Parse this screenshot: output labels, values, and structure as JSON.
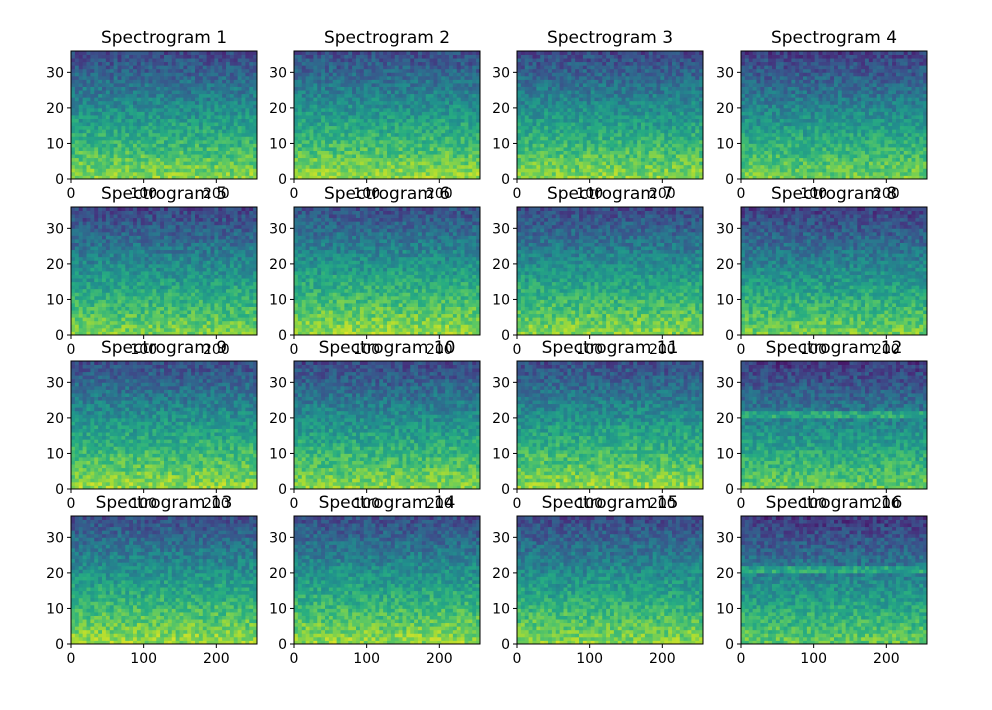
{
  "figure": {
    "background": "#ffffff"
  },
  "chart_data": [
    {
      "type": "heatmap",
      "title": "Spectrogram 1",
      "xlim": [
        0,
        256
      ],
      "ylim": [
        0,
        36
      ],
      "xticks": [
        0,
        100,
        200
      ],
      "yticks": [
        0,
        10,
        20,
        30
      ],
      "xtick_labels": [
        "0",
        "100",
        "200"
      ],
      "ytick_labels": [
        "0",
        "10",
        "20",
        "30"
      ],
      "colormap": "viridis",
      "intensity": 0.55,
      "horizontal_band": false
    },
    {
      "type": "heatmap",
      "title": "Spectrogram 2",
      "xlim": [
        0,
        256
      ],
      "ylim": [
        0,
        36
      ],
      "xticks": [
        0,
        100,
        200
      ],
      "yticks": [
        0,
        10,
        20,
        30
      ],
      "xtick_labels": [
        "0",
        "100",
        "200"
      ],
      "ytick_labels": [
        "0",
        "10",
        "20",
        "30"
      ],
      "colormap": "viridis",
      "intensity": 0.6,
      "horizontal_band": false
    },
    {
      "type": "heatmap",
      "title": "Spectrogram 3",
      "xlim": [
        0,
        256
      ],
      "ylim": [
        0,
        36
      ],
      "xticks": [
        0,
        100,
        200
      ],
      "yticks": [
        0,
        10,
        20,
        30
      ],
      "xtick_labels": [
        "0",
        "100",
        "200"
      ],
      "ytick_labels": [
        "0",
        "10",
        "20",
        "30"
      ],
      "colormap": "viridis",
      "intensity": 0.55,
      "horizontal_band": false
    },
    {
      "type": "heatmap",
      "title": "Spectrogram 4",
      "xlim": [
        0,
        256
      ],
      "ylim": [
        0,
        36
      ],
      "xticks": [
        0,
        100,
        200
      ],
      "yticks": [
        0,
        10,
        20,
        30
      ],
      "xtick_labels": [
        "0",
        "100",
        "200"
      ],
      "ytick_labels": [
        "0",
        "10",
        "20",
        "30"
      ],
      "colormap": "viridis",
      "intensity": 0.45,
      "horizontal_band": false
    },
    {
      "type": "heatmap",
      "title": "Spectrogram 5",
      "xlim": [
        0,
        256
      ],
      "ylim": [
        0,
        36
      ],
      "xticks": [
        0,
        100,
        200
      ],
      "yticks": [
        0,
        10,
        20,
        30
      ],
      "xtick_labels": [
        "0",
        "100",
        "200"
      ],
      "ytick_labels": [
        "0",
        "10",
        "20",
        "30"
      ],
      "colormap": "viridis",
      "intensity": 0.5,
      "horizontal_band": false
    },
    {
      "type": "heatmap",
      "title": "Spectrogram 6",
      "xlim": [
        0,
        256
      ],
      "ylim": [
        0,
        36
      ],
      "xticks": [
        0,
        100,
        200
      ],
      "yticks": [
        0,
        10,
        20,
        30
      ],
      "xtick_labels": [
        "0",
        "100",
        "200"
      ],
      "ytick_labels": [
        "0",
        "10",
        "20",
        "30"
      ],
      "colormap": "viridis",
      "intensity": 0.62,
      "horizontal_band": false
    },
    {
      "type": "heatmap",
      "title": "Spectrogram 7",
      "xlim": [
        0,
        256
      ],
      "ylim": [
        0,
        36
      ],
      "xticks": [
        0,
        100,
        200
      ],
      "yticks": [
        0,
        10,
        20,
        30
      ],
      "xtick_labels": [
        "0",
        "100",
        "200"
      ],
      "ytick_labels": [
        "0",
        "10",
        "20",
        "30"
      ],
      "colormap": "viridis",
      "intensity": 0.55,
      "horizontal_band": false
    },
    {
      "type": "heatmap",
      "title": "Spectrogram 8",
      "xlim": [
        0,
        256
      ],
      "ylim": [
        0,
        36
      ],
      "xticks": [
        0,
        100,
        200
      ],
      "yticks": [
        0,
        10,
        20,
        30
      ],
      "xtick_labels": [
        "0",
        "100",
        "200"
      ],
      "ytick_labels": [
        "0",
        "10",
        "20",
        "30"
      ],
      "colormap": "viridis",
      "intensity": 0.45,
      "horizontal_band": false
    },
    {
      "type": "heatmap",
      "title": "Spectrogram 9",
      "xlim": [
        0,
        256
      ],
      "ylim": [
        0,
        36
      ],
      "xticks": [
        0,
        100,
        200
      ],
      "yticks": [
        0,
        10,
        20,
        30
      ],
      "xtick_labels": [
        "0",
        "100",
        "200"
      ],
      "ytick_labels": [
        "0",
        "10",
        "20",
        "30"
      ],
      "colormap": "viridis",
      "intensity": 0.6,
      "horizontal_band": false
    },
    {
      "type": "heatmap",
      "title": "Spectrogram 10",
      "xlim": [
        0,
        256
      ],
      "ylim": [
        0,
        36
      ],
      "xticks": [
        0,
        100,
        200
      ],
      "yticks": [
        0,
        10,
        20,
        30
      ],
      "xtick_labels": [
        "0",
        "100",
        "200"
      ],
      "ytick_labels": [
        "0",
        "10",
        "20",
        "30"
      ],
      "colormap": "viridis",
      "intensity": 0.55,
      "horizontal_band": false
    },
    {
      "type": "heatmap",
      "title": "Spectrogram 11",
      "xlim": [
        0,
        256
      ],
      "ylim": [
        0,
        36
      ],
      "xticks": [
        0,
        100,
        200
      ],
      "yticks": [
        0,
        10,
        20,
        30
      ],
      "xtick_labels": [
        "0",
        "100",
        "200"
      ],
      "ytick_labels": [
        "0",
        "10",
        "20",
        "30"
      ],
      "colormap": "viridis",
      "intensity": 0.6,
      "horizontal_band": false
    },
    {
      "type": "heatmap",
      "title": "Spectrogram 12",
      "xlim": [
        0,
        256
      ],
      "ylim": [
        0,
        36
      ],
      "xticks": [
        0,
        100,
        200
      ],
      "yticks": [
        0,
        10,
        20,
        30
      ],
      "xtick_labels": [
        "0",
        "100",
        "200"
      ],
      "ytick_labels": [
        "0",
        "10",
        "20",
        "30"
      ],
      "colormap": "viridis",
      "intensity": 0.4,
      "horizontal_band": true
    },
    {
      "type": "heatmap",
      "title": "Spectrogram 13",
      "xlim": [
        0,
        256
      ],
      "ylim": [
        0,
        36
      ],
      "xticks": [
        0,
        100,
        200
      ],
      "yticks": [
        0,
        10,
        20,
        30
      ],
      "xtick_labels": [
        "0",
        "100",
        "200"
      ],
      "ytick_labels": [
        "0",
        "10",
        "20",
        "30"
      ],
      "colormap": "viridis",
      "intensity": 0.62,
      "horizontal_band": false
    },
    {
      "type": "heatmap",
      "title": "Spectrogram 14",
      "xlim": [
        0,
        256
      ],
      "ylim": [
        0,
        36
      ],
      "xticks": [
        0,
        100,
        200
      ],
      "yticks": [
        0,
        10,
        20,
        30
      ],
      "xtick_labels": [
        "0",
        "100",
        "200"
      ],
      "ytick_labels": [
        "0",
        "10",
        "20",
        "30"
      ],
      "colormap": "viridis",
      "intensity": 0.6,
      "horizontal_band": false
    },
    {
      "type": "heatmap",
      "title": "Spectrogram 15",
      "xlim": [
        0,
        256
      ],
      "ylim": [
        0,
        36
      ],
      "xticks": [
        0,
        100,
        200
      ],
      "yticks": [
        0,
        10,
        20,
        30
      ],
      "xtick_labels": [
        "0",
        "100",
        "200"
      ],
      "ytick_labels": [
        "0",
        "10",
        "20",
        "30"
      ],
      "colormap": "viridis",
      "intensity": 0.55,
      "horizontal_band": false
    },
    {
      "type": "heatmap",
      "title": "Spectrogram 16",
      "xlim": [
        0,
        256
      ],
      "ylim": [
        0,
        36
      ],
      "xticks": [
        0,
        100,
        200
      ],
      "yticks": [
        0,
        10,
        20,
        30
      ],
      "xtick_labels": [
        "0",
        "100",
        "200"
      ],
      "ytick_labels": [
        "0",
        "10",
        "20",
        "30"
      ],
      "colormap": "viridis",
      "intensity": 0.38,
      "horizontal_band": true
    }
  ]
}
